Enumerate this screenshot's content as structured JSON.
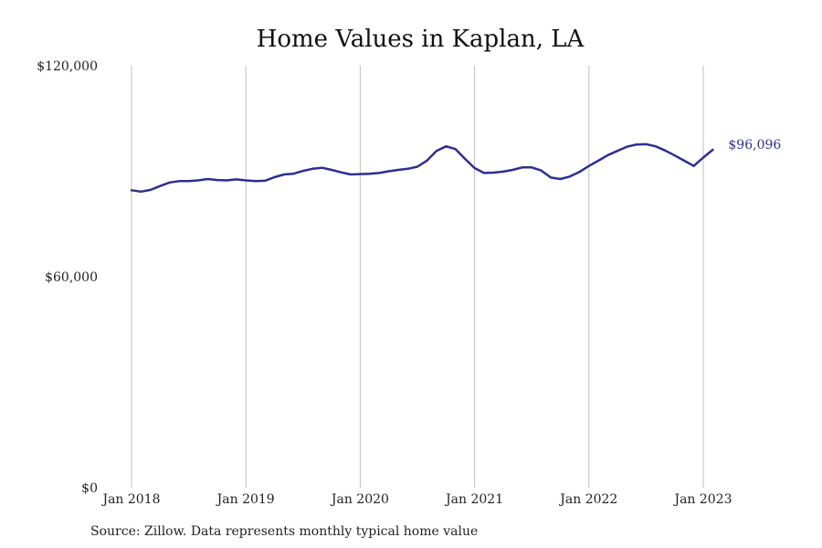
{
  "chart_data": {
    "type": "line",
    "title": "Home Values in Kaplan, LA",
    "xlabel": "",
    "ylabel": "",
    "ylim": [
      0,
      120000
    ],
    "y_ticks": [
      {
        "value": 0,
        "label": "$0"
      },
      {
        "value": 60000,
        "label": "$60,000"
      },
      {
        "value": 120000,
        "label": "$120,000"
      }
    ],
    "x_ticks": [
      {
        "date": "2018-01",
        "label": "Jan 2018"
      },
      {
        "date": "2019-01",
        "label": "Jan 2019"
      },
      {
        "date": "2020-01",
        "label": "Jan 2020"
      },
      {
        "date": "2021-01",
        "label": "Jan 2021"
      },
      {
        "date": "2022-01",
        "label": "Jan 2022"
      },
      {
        "date": "2023-01",
        "label": "Jan 2023"
      }
    ],
    "grid": {
      "vertical": true,
      "horizontal": false
    },
    "line_color": "#2e2e8f",
    "grid_color": "#bfbfbf",
    "series": [
      {
        "x": [
          "2018-01",
          "2018-02",
          "2018-03",
          "2018-04",
          "2018-05",
          "2018-06",
          "2018-07",
          "2018-08",
          "2018-09",
          "2018-10",
          "2018-11",
          "2018-12",
          "2019-01",
          "2019-02",
          "2019-03",
          "2019-04",
          "2019-05",
          "2019-06",
          "2019-07",
          "2019-08",
          "2019-09",
          "2019-10",
          "2019-11",
          "2019-12",
          "2020-01",
          "2020-02",
          "2020-03",
          "2020-04",
          "2020-05",
          "2020-06",
          "2020-07",
          "2020-08",
          "2020-09",
          "2020-10",
          "2020-11",
          "2020-12",
          "2021-01",
          "2021-02",
          "2021-03",
          "2021-04",
          "2021-05",
          "2021-06",
          "2021-07",
          "2021-08",
          "2021-09",
          "2021-10",
          "2021-11",
          "2021-12",
          "2022-01",
          "2022-02",
          "2022-03",
          "2022-04",
          "2022-05",
          "2022-06",
          "2022-07",
          "2022-08",
          "2022-09",
          "2022-10",
          "2022-11",
          "2022-12",
          "2023-01",
          "2023-02"
        ],
        "values": [
          84600,
          84200,
          84700,
          85800,
          86800,
          87200,
          87200,
          87400,
          87800,
          87500,
          87400,
          87700,
          87400,
          87200,
          87300,
          88300,
          89100,
          89300,
          90100,
          90700,
          91000,
          90400,
          89700,
          89100,
          89200,
          89300,
          89500,
          90000,
          90400,
          90700,
          91300,
          93000,
          95800,
          97100,
          96300,
          93500,
          90900,
          89500,
          89600,
          89900,
          90400,
          91100,
          91100,
          90200,
          88200,
          87800,
          88500,
          89800,
          91500,
          93000,
          94600,
          95800,
          97000,
          97600,
          97700,
          97100,
          95900,
          94500,
          93000,
          91500,
          93900,
          96096
        ]
      }
    ],
    "end_label": "$96,096"
  },
  "source_note": "Source: Zillow. Data represents monthly typical home value"
}
